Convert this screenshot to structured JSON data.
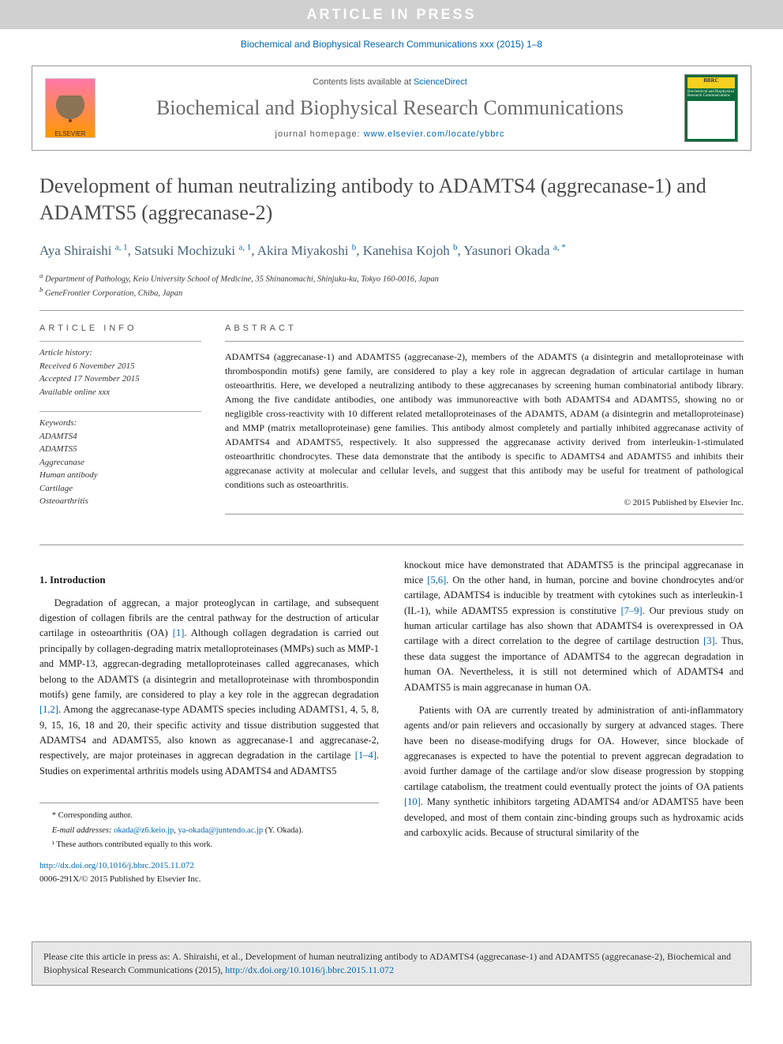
{
  "banner": "ARTICLE IN PRESS",
  "journal_ref": "Biochemical and Biophysical Research Communications xxx (2015) 1–8",
  "masthead": {
    "contents_prefix": "Contents lists available at ",
    "contents_link": "ScienceDirect",
    "journal": "Biochemical and Biophysical Research Communications",
    "homepage_prefix": "journal homepage: ",
    "homepage_url": "www.elsevier.com/locate/ybbrc",
    "elsevier": "ELSEVIER",
    "cover_abbr": "BBRC"
  },
  "title": "Development of human neutralizing antibody to ADAMTS4 (aggrecanase-1) and ADAMTS5 (aggrecanase-2)",
  "authors_html": "Aya Shiraishi|a, 1|, Satsuki Mochizuki|a, 1|, Akira Miyakoshi|b|, Kanehisa Kojoh|b|, Yasunori Okada|a, *|",
  "authors": [
    {
      "name": "Aya Shiraishi",
      "sup": "a, 1"
    },
    {
      "name": "Satsuki Mochizuki",
      "sup": "a, 1"
    },
    {
      "name": "Akira Miyakoshi",
      "sup": "b"
    },
    {
      "name": "Kanehisa Kojoh",
      "sup": "b"
    },
    {
      "name": "Yasunori Okada",
      "sup": "a, *"
    }
  ],
  "affiliations": [
    {
      "key": "a",
      "text": "Department of Pathology, Keio University School of Medicine, 35 Shinanomachi, Shinjuku-ku, Tokyo 160-0016, Japan"
    },
    {
      "key": "b",
      "text": "GeneFrontier Corporation, Chiba, Japan"
    }
  ],
  "article_info": {
    "heading": "ARTICLE INFO",
    "history_label": "Article history:",
    "received": "Received 6 November 2015",
    "accepted": "Accepted 17 November 2015",
    "available": "Available online xxx",
    "keywords_label": "Keywords:",
    "keywords": [
      "ADAMTS4",
      "ADAMTS5",
      "Aggrecanase",
      "Human antibody",
      "Cartilage",
      "Osteoarthritis"
    ]
  },
  "abstract": {
    "heading": "ABSTRACT",
    "text": "ADAMTS4 (aggrecanase-1) and ADAMTS5 (aggrecanase-2), members of the ADAMTS (a disintegrin and metalloproteinase with thrombospondin motifs) gene family, are considered to play a key role in aggrecan degradation of articular cartilage in human osteoarthritis. Here, we developed a neutralizing antibody to these aggrecanases by screening human combinatorial antibody library. Among the five candidate antibodies, one antibody was immunoreactive with both ADAMTS4 and ADAMTS5, showing no or negligible cross-reactivity with 10 different related metalloproteinases of the ADAMTS, ADAM (a disintegrin and metalloproteinase) and MMP (matrix metalloproteinase) gene families. This antibody almost completely and partially inhibited aggrecanase activity of ADAMTS4 and ADAMTS5, respectively. It also suppressed the aggrecanase activity derived from interleukin-1-stimulated osteoarthritic chondrocytes. These data demonstrate that the antibody is specific to ADAMTS4 and ADAMTS5 and inhibits their aggrecanase activity at molecular and cellular levels, and suggest that this antibody may be useful for treatment of pathological conditions such as osteoarthritis.",
    "copyright": "© 2015 Published by Elsevier Inc."
  },
  "body": {
    "section1_heading": "1. Introduction",
    "p1": "Degradation of aggrecan, a major proteoglycan in cartilage, and subsequent digestion of collagen fibrils are the central pathway for the destruction of articular cartilage in osteoarthritis (OA) [1]. Although collagen degradation is carried out principally by collagen-degrading matrix metalloproteinases (MMPs) such as MMP-1 and MMP-13, aggrecan-degrading metalloproteinases called aggrecanases, which belong to the ADAMTS (a disintegrin and metalloproteinase with thrombospondin motifs) gene family, are considered to play a key role in the aggrecan degradation [1,2]. Among the aggrecanase-type ADAMTS species including ADAMTS1, 4, 5, 8, 9, 15, 16, 18 and 20, their specific activity and tissue distribution suggested that ADAMTS4 and ADAMTS5, also known as aggrecanase-1 and aggrecanase-2, respectively, are major proteinases in aggrecan degradation in the cartilage [1–4]. Studies on experimental arthritis models using ADAMTS4 and ADAMTS5",
    "p2": "knockout mice have demonstrated that ADAMTS5 is the principal aggrecanase in mice [5,6]. On the other hand, in human, porcine and bovine chondrocytes and/or cartilage, ADAMTS4 is inducible by treatment with cytokines such as interleukin-1 (IL-1), while ADAMTS5 expression is constitutive [7–9]. Our previous study on human articular cartilage has also shown that ADAMTS4 is overexpressed in OA cartilage with a direct correlation to the degree of cartilage destruction [3]. Thus, these data suggest the importance of ADAMTS4 to the aggrecan degradation in human OA. Nevertheless, it is still not determined which of ADAMTS4 and ADAMTS5 is main aggrecanase in human OA.",
    "p3": "Patients with OA are currently treated by administration of anti-inflammatory agents and/or pain relievers and occasionally by surgery at advanced stages. There have been no disease-modifying drugs for OA. However, since blockade of aggrecanases is expected to have the potential to prevent aggrecan degradation to avoid further damage of the cartilage and/or slow disease progression by stopping cartilage catabolism, the treatment could eventually protect the joints of OA patients [10]. Many synthetic inhibitors targeting ADAMTS4 and/or ADAMTS5 have been developed, and most of them contain zinc-binding groups such as hydroxamic acids and carboxylic acids. Because of structural similarity of the"
  },
  "footnotes": {
    "corresponding": "* Corresponding author.",
    "email_label": "E-mail addresses:",
    "email1": "okada@z6.keio.jp",
    "email2": "ya-okada@juntendo.ac.jp",
    "email_person": "(Y. Okada).",
    "equal": "¹ These authors contributed equally to this work."
  },
  "doi": {
    "url": "http://dx.doi.org/10.1016/j.bbrc.2015.11.072",
    "issn": "0006-291X/© 2015 Published by Elsevier Inc."
  },
  "cite_box": {
    "text": "Please cite this article in press as: A. Shiraishi, et al., Development of human neutralizing antibody to ADAMTS4 (aggrecanase-1) and ADAMTS5 (aggrecanase-2), Biochemical and Biophysical Research Communications (2015), ",
    "url": "http://dx.doi.org/10.1016/j.bbrc.2015.11.072"
  },
  "colors": {
    "link": "#0066b3",
    "banner_bg": "#d0d0d0",
    "title_gray": "#4a4a4a",
    "author_blue": "#4a647c"
  }
}
